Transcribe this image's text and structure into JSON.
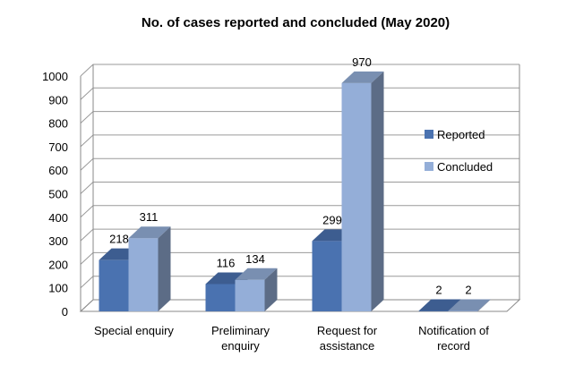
{
  "chart_data": {
    "type": "bar",
    "title": "No. of cases reported and concluded (May 2020)",
    "categories": [
      [
        "Special enquiry"
      ],
      [
        "Preliminary",
        "enquiry"
      ],
      [
        "Request for",
        "assistance"
      ],
      [
        "Notification of",
        "record"
      ]
    ],
    "series": [
      {
        "name": "Reported",
        "values": [
          218,
          116,
          299,
          2
        ],
        "color": "#4a72b0"
      },
      {
        "name": "Concluded",
        "values": [
          311,
          134,
          970,
          2
        ],
        "color": "#94aed8"
      }
    ],
    "ylim": [
      0,
      1000
    ],
    "yticks": [
      0,
      100,
      200,
      300,
      400,
      500,
      600,
      700,
      800,
      900,
      1000
    ],
    "grid": true,
    "legend_position": "right",
    "style": "3d-clustered-column"
  }
}
